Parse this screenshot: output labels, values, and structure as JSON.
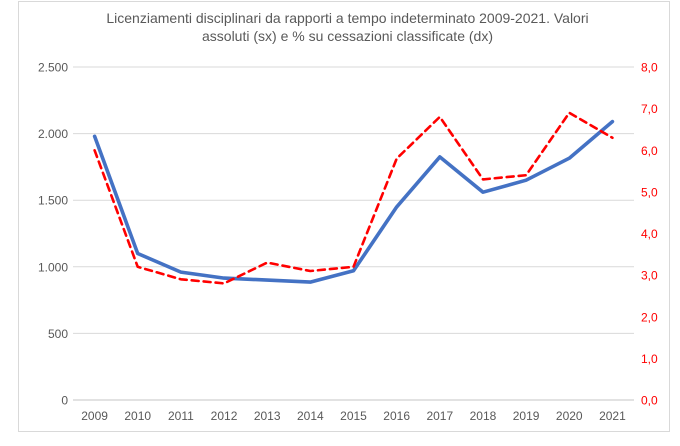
{
  "chart_data": {
    "type": "line",
    "title": "Licenziamenti disciplinari da rapporti a tempo indeterminato 2009-2021. Valori assoluti (sx) e % su cessazioni classificate (dx)",
    "title_color": "#595959",
    "categories": [
      "2009",
      "2010",
      "2011",
      "2012",
      "2013",
      "2014",
      "2015",
      "2016",
      "2017",
      "2018",
      "2019",
      "2020",
      "2021"
    ],
    "series": [
      {
        "name": "Valori assoluti (sx)",
        "axis": "left",
        "color": "#4472C4",
        "line_style": "solid",
        "values": [
          1980,
          1100,
          960,
          915,
          900,
          885,
          970,
          1450,
          1825,
          1560,
          1650,
          1815,
          2090
        ]
      },
      {
        "name": "% su cessazioni classificate (dx)",
        "axis": "right",
        "color": "#FF0000",
        "line_style": "dashed",
        "values": [
          6.0,
          3.2,
          2.9,
          2.8,
          3.3,
          3.1,
          3.2,
          5.8,
          6.8,
          5.3,
          5.4,
          6.9,
          6.3
        ]
      }
    ],
    "left_axis": {
      "min": 0,
      "max": 2500,
      "tick_values": [
        0,
        500,
        1000,
        1500,
        2000,
        2500
      ],
      "tick_labels": [
        "0",
        "500",
        "1.000",
        "1.500",
        "2.000",
        "2.500"
      ],
      "label_color": "#595959"
    },
    "right_axis": {
      "min": 0,
      "max": 8,
      "tick_values": [
        0,
        1,
        2,
        3,
        4,
        5,
        6,
        7,
        8
      ],
      "tick_labels": [
        "0,0",
        "1,0",
        "2,0",
        "3,0",
        "4,0",
        "5,0",
        "6,0",
        "7,0",
        "8,0"
      ],
      "label_color": "#FF0000"
    },
    "x_axis": {
      "label_color": "#595959"
    },
    "grid": true,
    "gridline_color": "#D9D9D9",
    "baseline_color": "#C6C6C6",
    "border_color": "#D9D9D9",
    "legend_position": "none"
  }
}
